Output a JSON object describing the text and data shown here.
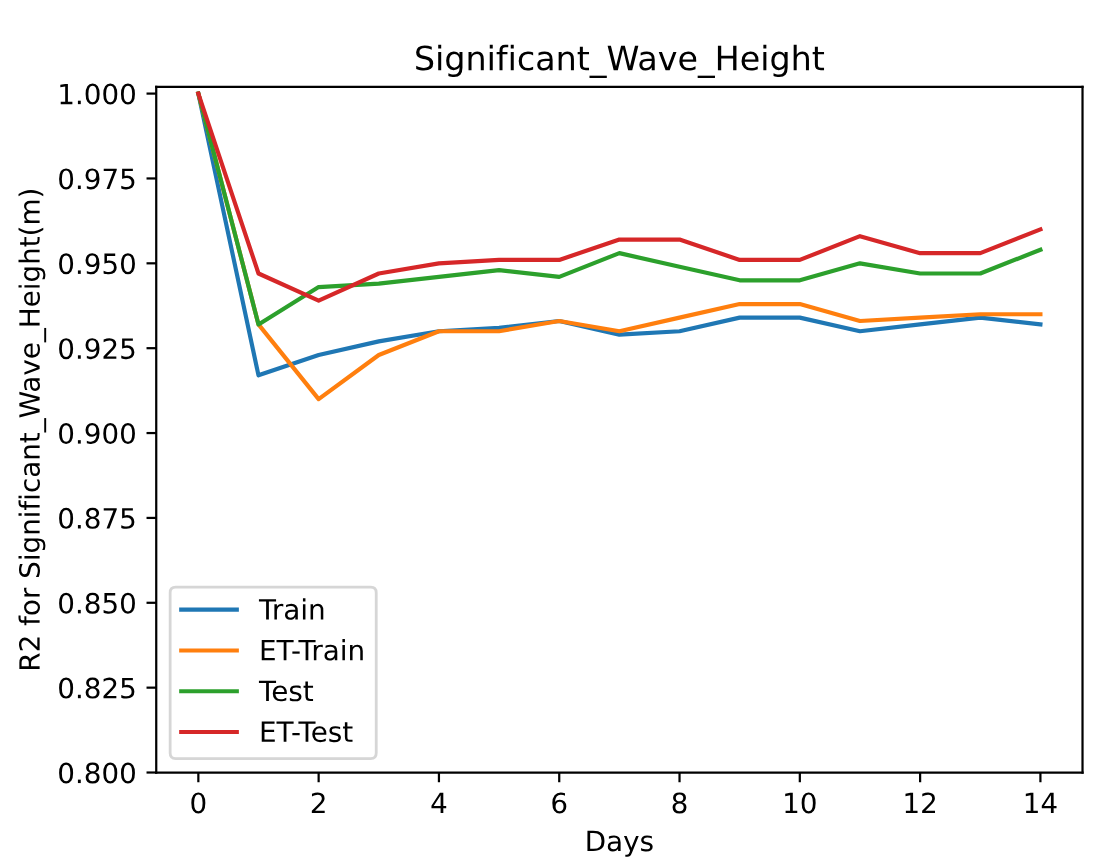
{
  "chart_data": {
    "type": "line",
    "title": "Significant_Wave_Height",
    "xlabel": "Days",
    "ylabel": "R2 for Significant_Wave_Height(m)",
    "x": [
      0,
      1,
      2,
      3,
      4,
      5,
      6,
      7,
      8,
      9,
      10,
      11,
      12,
      13,
      14
    ],
    "series": [
      {
        "name": "Train",
        "color": "#1f77b4",
        "values": [
          1.0,
          0.917,
          0.923,
          0.927,
          0.93,
          0.931,
          0.933,
          0.929,
          0.93,
          0.934,
          0.934,
          0.93,
          0.932,
          0.934,
          0.932
        ]
      },
      {
        "name": "ET-Train",
        "color": "#ff7f0e",
        "values": [
          1.0,
          0.932,
          0.91,
          0.923,
          0.93,
          0.93,
          0.933,
          0.93,
          0.934,
          0.938,
          0.938,
          0.933,
          0.934,
          0.935,
          0.935
        ]
      },
      {
        "name": "Test",
        "color": "#2ca02c",
        "values": [
          1.0,
          0.932,
          0.943,
          0.944,
          0.946,
          0.948,
          0.946,
          0.953,
          0.949,
          0.945,
          0.945,
          0.95,
          0.947,
          0.947,
          0.954
        ]
      },
      {
        "name": "ET-Test",
        "color": "#d62728",
        "values": [
          1.0,
          0.947,
          0.939,
          0.947,
          0.95,
          0.951,
          0.951,
          0.957,
          0.957,
          0.951,
          0.951,
          0.958,
          0.953,
          0.953,
          0.96
        ]
      }
    ],
    "xlim": [
      -0.7,
      14.7
    ],
    "xticks": [
      0,
      2,
      4,
      6,
      8,
      10,
      12,
      14
    ],
    "ylim": [
      0.8,
      1.002
    ],
    "yticks": [
      {
        "value": 0.8,
        "label": "0.800"
      },
      {
        "value": 0.825,
        "label": "0.825"
      },
      {
        "value": 0.85,
        "label": "0.850"
      },
      {
        "value": 0.875,
        "label": "0.875"
      },
      {
        "value": 0.9,
        "label": "0.900"
      },
      {
        "value": 0.925,
        "label": "0.925"
      },
      {
        "value": 0.95,
        "label": "0.950"
      },
      {
        "value": 0.975,
        "label": "0.975"
      },
      {
        "value": 1.0,
        "label": "1.000"
      }
    ],
    "legend": "lower left",
    "grid": false,
    "marker": "none",
    "line_style": "solid"
  }
}
